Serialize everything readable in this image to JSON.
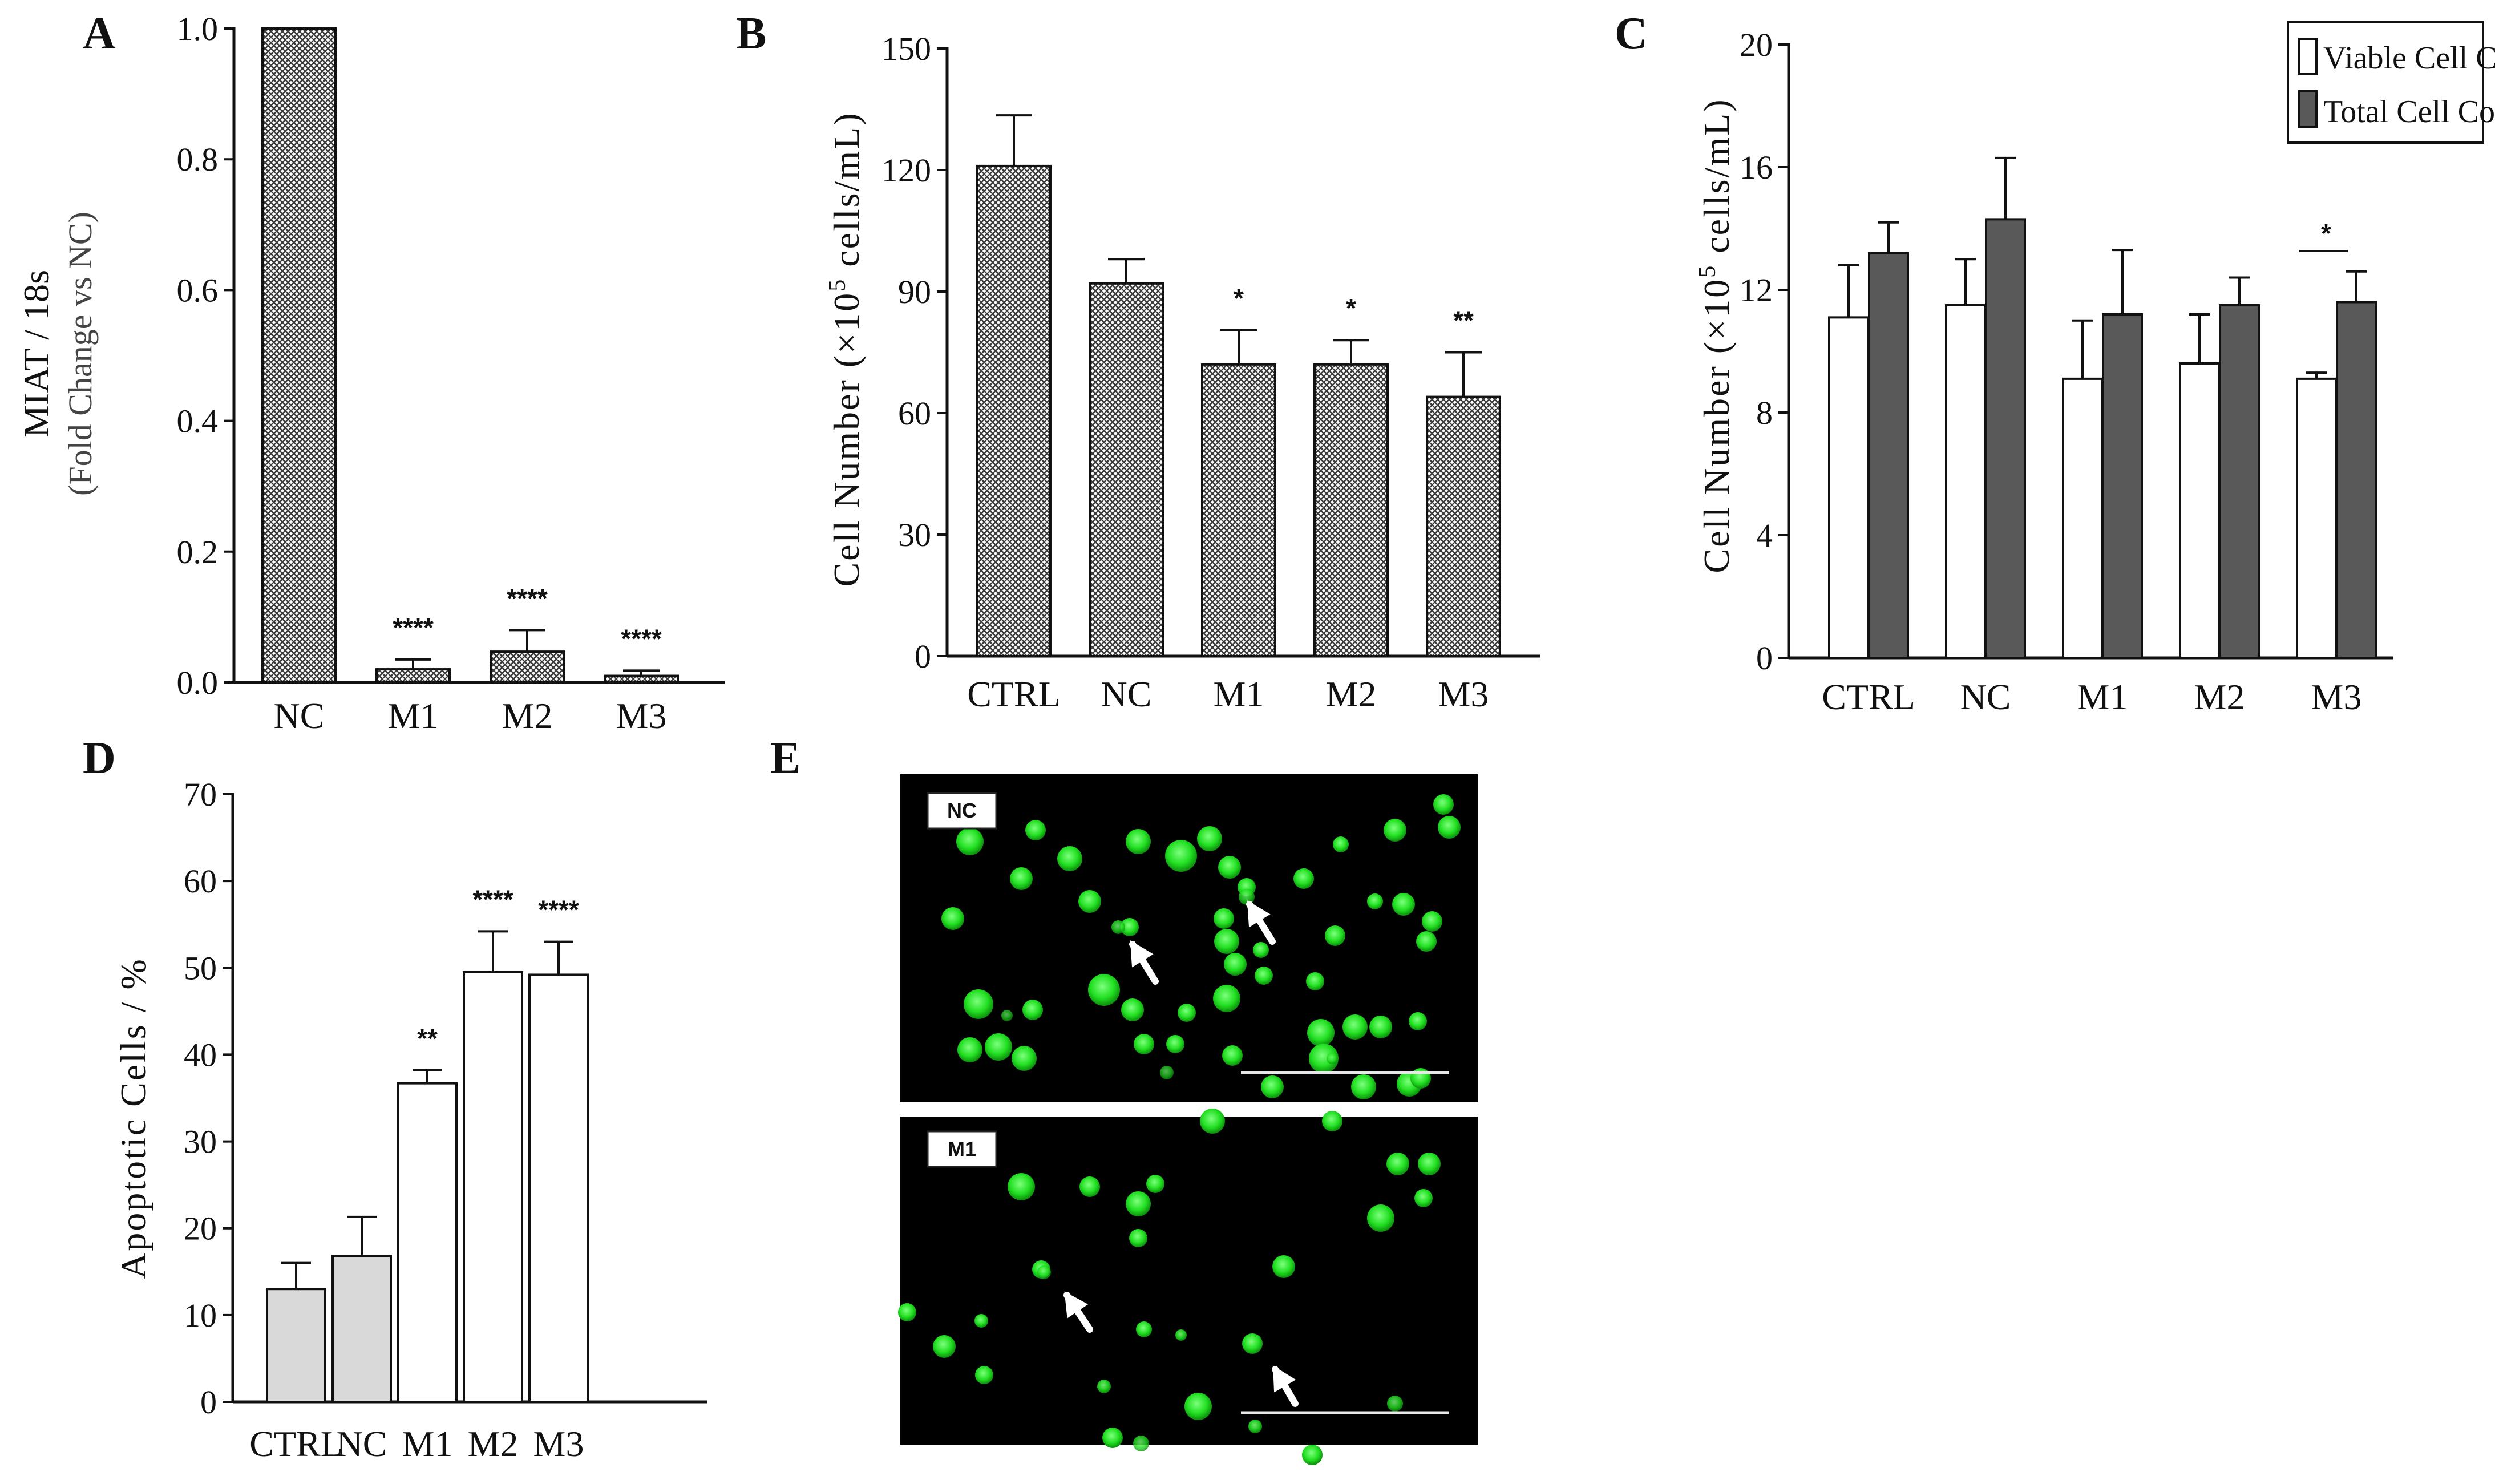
{
  "panels": {
    "A": "A",
    "B": "B",
    "C": "C",
    "D": "D",
    "E": "E"
  },
  "colors": {
    "axis": "#111111",
    "hatch_fg": "#3c3c3c",
    "hatch_bg": "#ffffff",
    "viable": "#ffffff",
    "total": "#595959",
    "gray_bar": "#d9d9d9",
    "open_bar": "#ffffff",
    "micro_bg": "#000000",
    "cell_green": "#22e022"
  },
  "chart_data": [
    {
      "id": "A",
      "type": "bar",
      "ylabel_line1": "MIAT / 18s",
      "ylabel_line2": "(Fold Change vs NC)",
      "ylim": [
        0,
        1.0
      ],
      "yticks": [
        "0.0",
        "0.2",
        "0.4",
        "0.6",
        "0.8",
        "1.0"
      ],
      "ytick_values": [
        0,
        0.2,
        0.4,
        0.6,
        0.8,
        1.0
      ],
      "categories": [
        "NC",
        "M1",
        "M2",
        "M3"
      ],
      "values": [
        1.0,
        0.02,
        0.047,
        0.01
      ],
      "errors": [
        0,
        0.015,
        0.033,
        0.008
      ],
      "significance": [
        "",
        "****",
        "****",
        "****"
      ],
      "fill": "hatch"
    },
    {
      "id": "B",
      "type": "bar",
      "ylabel": "Cell Number (×10",
      "ylabel_sup": "5",
      "ylabel_tail": " cells/mL)",
      "ylim": [
        0,
        150
      ],
      "yticks": [
        "0",
        "30",
        "60",
        "90",
        "120",
        "150"
      ],
      "ytick_values": [
        0,
        30,
        60,
        90,
        120,
        150
      ],
      "categories": [
        "CTRL",
        "NC",
        "M1",
        "M2",
        "M3"
      ],
      "values": [
        121,
        92,
        72,
        72,
        64
      ],
      "errors": [
        12.5,
        6,
        8.5,
        6,
        11
      ],
      "significance": [
        "",
        "",
        "*",
        "*",
        "**"
      ],
      "fill": "hatch"
    },
    {
      "id": "C",
      "type": "bar",
      "ylabel": "Cell Number (×10",
      "ylabel_sup": "5",
      "ylabel_tail": " cells/mL)",
      "ylim": [
        0,
        20
      ],
      "yticks": [
        "0",
        "4",
        "8",
        "12",
        "16",
        "20"
      ],
      "ytick_values": [
        0,
        4,
        8,
        12,
        16,
        20
      ],
      "categories": [
        "CTRL",
        "NC",
        "M1",
        "M2",
        "M3"
      ],
      "legend": [
        "Viable Cell Count",
        "Total Cell Count"
      ],
      "legend_position": "top-right",
      "series": [
        {
          "name": "Viable Cell Count",
          "values": [
            11.1,
            11.5,
            9.1,
            9.6,
            9.1
          ],
          "errors": [
            1.7,
            1.5,
            1.9,
            1.6,
            0.2
          ]
        },
        {
          "name": "Total Cell Count",
          "values": [
            13.2,
            14.3,
            11.2,
            11.5,
            11.6
          ],
          "errors": [
            1.0,
            2.0,
            2.1,
            0.9,
            1.0
          ]
        }
      ],
      "significance_pair": {
        "category": "M3",
        "label": "*"
      }
    },
    {
      "id": "D",
      "type": "bar",
      "ylabel": "Apoptotic Cells / %",
      "ylim": [
        0,
        70
      ],
      "yticks": [
        "0",
        "10",
        "20",
        "30",
        "40",
        "50",
        "60",
        "70"
      ],
      "ytick_values": [
        0,
        10,
        20,
        30,
        40,
        50,
        60,
        70
      ],
      "categories": [
        "CTRL",
        "NC",
        "M1",
        "M2",
        "M3"
      ],
      "values": [
        13,
        16.8,
        36.7,
        49.5,
        49.2
      ],
      "errors": [
        3,
        4.5,
        1.5,
        4.7,
        3.8
      ],
      "significance": [
        "",
        "",
        "**",
        "****",
        "****"
      ],
      "fills": [
        "gray",
        "gray",
        "open",
        "open",
        "open"
      ]
    }
  ],
  "micrographs": [
    {
      "id": "E-top",
      "tag": "NC"
    },
    {
      "id": "E-bottom",
      "tag": "M1"
    }
  ]
}
